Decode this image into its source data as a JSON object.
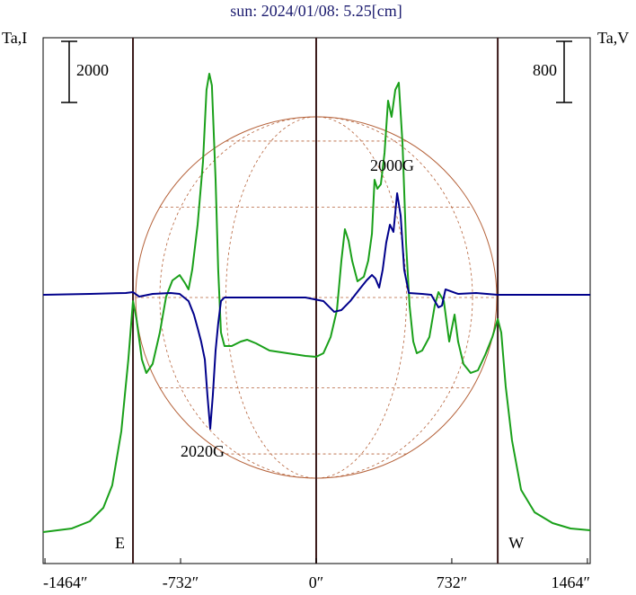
{
  "chart_data": {
    "type": "line",
    "title": "sun: 2024/01/08: 5.25[cm]",
    "y_label": "Ta,I",
    "y2_label": "Ta,V",
    "xlim": [
      -1474,
      1479
    ],
    "ylim": [
      0,
      17199
    ],
    "y2lim": [
      -3516,
      3363
    ],
    "xticks": [
      {
        "value": -1464,
        "label": "-1464″"
      },
      {
        "value": -732,
        "label": "-732″"
      },
      {
        "value": 0,
        "label": "0″"
      },
      {
        "value": 732,
        "label": "732″"
      },
      {
        "value": 1464,
        "label": "1464″"
      }
    ],
    "vlines": [
      -989,
      0,
      980
    ],
    "vline_labels": [
      "E",
      "W"
    ],
    "scale_bars": [
      {
        "value": 2000
      },
      {
        "value": 800,
        "axis": "y2"
      }
    ],
    "annotations": [
      "2000G",
      "2020G"
    ],
    "series": [
      {
        "color": "#1aa01a",
        "x": [
          -1474,
          -1319,
          -1222,
          -1149,
          -1101,
          -1052,
          -1014,
          -989,
          -970,
          -941,
          -917,
          -883,
          -844,
          -810,
          -776,
          -737,
          -708,
          -689,
          -669,
          -640,
          -611,
          -592,
          -577,
          -563,
          -543,
          -529,
          -514,
          -495,
          -456,
          -407,
          -373,
          -325,
          -252,
          -155,
          -58,
          0,
          39,
          78,
          112,
          136,
          155,
          175,
          194,
          223,
          257,
          281,
          301,
          315,
          330,
          349,
          369,
          388,
          407,
          427,
          446,
          466,
          485,
          504,
          524,
          543,
          572,
          611,
          640,
          660,
          689,
          718,
          747,
          766,
          795,
          834,
          873,
          912,
          951,
          980,
          999,
          1023,
          1057,
          1106,
          1179,
          1276,
          1373,
          1479
        ],
        "values": [
          1029,
          1147,
          1382,
          1823,
          2558,
          4322,
          6674,
          8585,
          7997,
          6674,
          6233,
          6527,
          7556,
          8732,
          9261,
          9437,
          9173,
          8967,
          9614,
          11084,
          13142,
          15494,
          16023,
          15641,
          12554,
          9614,
          7556,
          7115,
          7115,
          7262,
          7321,
          7203,
          6968,
          6880,
          6791,
          6762,
          6880,
          7409,
          8291,
          9908,
          10937,
          10555,
          9908,
          9232,
          9379,
          9908,
          10790,
          12554,
          12260,
          12407,
          13436,
          15141,
          14612,
          15494,
          15729,
          13730,
          10496,
          8438,
          7262,
          6880,
          6968,
          7409,
          8438,
          8879,
          8585,
          7262,
          8144,
          7262,
          6527,
          6233,
          6321,
          6821,
          7409,
          7997,
          7556,
          5792,
          4028,
          2411,
          1676,
          1323,
          1147,
          1088
        ]
      },
      {
        "color": "#00008b",
        "axis": "y2",
        "x": [
          -1474,
          -1222,
          -1028,
          -989,
          -955,
          -883,
          -786,
          -737,
          -689,
          -660,
          -640,
          -621,
          -601,
          -587,
          -572,
          -558,
          -543,
          -529,
          -514,
          -495,
          -252,
          -58,
          39,
          97,
          136,
          184,
          233,
          272,
          301,
          320,
          340,
          359,
          378,
          398,
          417,
          437,
          456,
          475,
          500,
          572,
          621,
          660,
          679,
          698,
          766,
          863,
          980,
          1479
        ],
        "values": [
          0,
          12,
          24,
          35,
          -24,
          12,
          24,
          12,
          -82,
          -259,
          -435,
          -612,
          -847,
          -1317,
          -1752,
          -1317,
          -729,
          -376,
          -82,
          -35,
          -35,
          -35,
          -82,
          -223,
          -200,
          -82,
          71,
          188,
          259,
          212,
          94,
          329,
          682,
          917,
          823,
          1329,
          1035,
          329,
          24,
          12,
          0,
          -165,
          -141,
          71,
          12,
          24,
          0,
          0
        ]
      }
    ]
  }
}
